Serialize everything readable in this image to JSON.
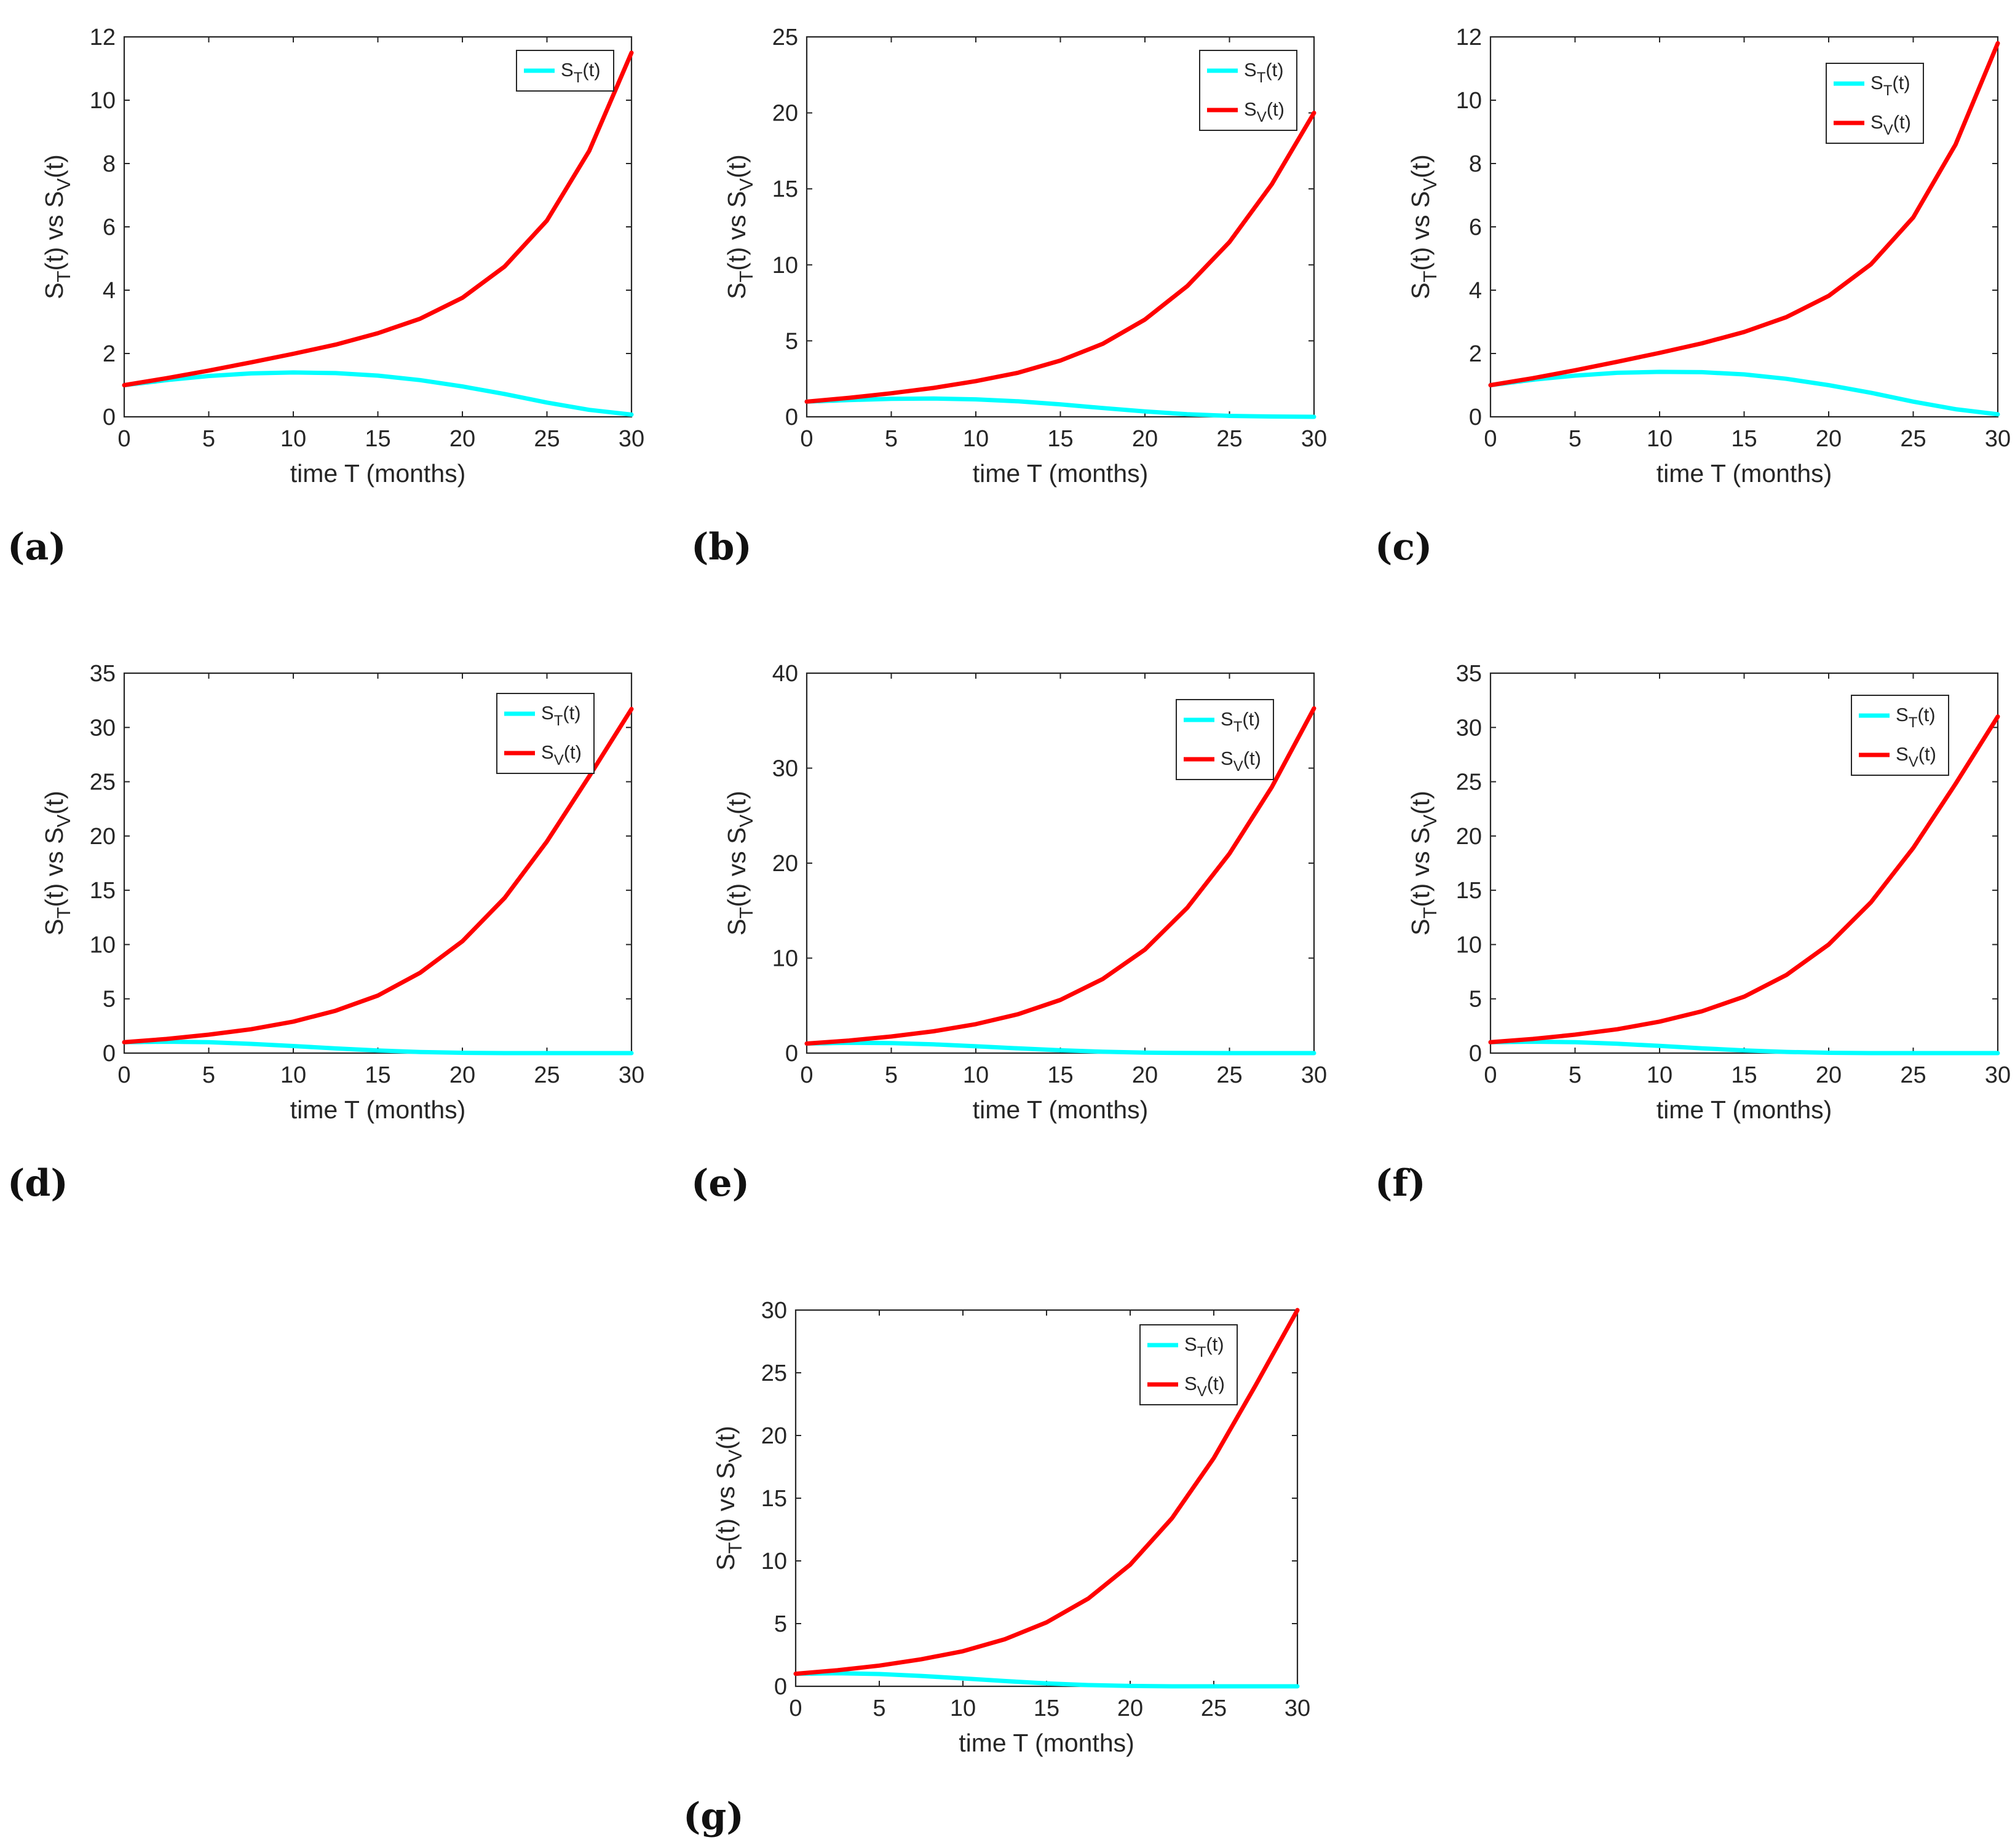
{
  "colors": {
    "st": "#00ffff",
    "sv": "#ff0000",
    "axis": "#262626"
  },
  "chart_data": [
    {
      "panel": "(a)",
      "type": "line",
      "xlabel": "time T (months)",
      "ylabel": {
        "main": "S",
        "sub": "T",
        "mid": "(t) vs S",
        "sub2": "V",
        "end": "(t)"
      },
      "xlim": [
        0,
        30
      ],
      "ylim": [
        0,
        12
      ],
      "xticks": [
        0,
        5,
        10,
        15,
        20,
        25,
        30
      ],
      "yticks": [
        0,
        2,
        4,
        6,
        8,
        10,
        12
      ],
      "legend": {
        "position": "top-right",
        "entries": [
          {
            "main": "S",
            "sub": "T",
            "end": "(t)"
          }
        ]
      },
      "series": [
        {
          "name": "S_T(t)",
          "color": "cyan",
          "x": [
            0,
            2.5,
            5,
            7.5,
            10,
            12.5,
            15,
            17.5,
            20,
            22.5,
            25,
            27.5,
            30
          ],
          "y": [
            1.0,
            1.16,
            1.29,
            1.37,
            1.4,
            1.38,
            1.3,
            1.16,
            0.96,
            0.72,
            0.45,
            0.22,
            0.07
          ]
        },
        {
          "name": "S_V(t)",
          "color": "red",
          "x": [
            0,
            2.5,
            5,
            7.5,
            10,
            12.5,
            15,
            17.5,
            20,
            22.5,
            25,
            27.5,
            30
          ],
          "y": [
            1.0,
            1.22,
            1.46,
            1.72,
            1.99,
            2.28,
            2.64,
            3.1,
            3.76,
            4.75,
            6.2,
            8.4,
            11.5
          ]
        }
      ]
    },
    {
      "panel": "(b)",
      "type": "line",
      "xlabel": "time T (months)",
      "ylabel": {
        "main": "S",
        "sub": "T",
        "mid": "(t) vs S",
        "sub2": "V",
        "end": "(t)"
      },
      "xlim": [
        0,
        30
      ],
      "ylim": [
        0,
        25
      ],
      "xticks": [
        0,
        5,
        10,
        15,
        20,
        25,
        30
      ],
      "yticks": [
        0,
        5,
        10,
        15,
        20,
        25
      ],
      "legend": {
        "position": "top-right",
        "entries": [
          {
            "main": "S",
            "sub": "T",
            "end": "(t)"
          },
          {
            "main": "S",
            "sub": "V",
            "end": "(t)"
          }
        ]
      },
      "series": [
        {
          "name": "S_T(t)",
          "color": "cyan",
          "x": [
            0,
            2.5,
            5,
            7.5,
            10,
            12.5,
            15,
            17.5,
            20,
            22.5,
            25,
            27.5,
            30
          ],
          "y": [
            1.0,
            1.1,
            1.18,
            1.2,
            1.15,
            1.02,
            0.82,
            0.58,
            0.35,
            0.17,
            0.06,
            0.02,
            0.0
          ]
        },
        {
          "name": "S_V(t)",
          "color": "red",
          "x": [
            0,
            2.5,
            5,
            7.5,
            10,
            12.5,
            15,
            17.5,
            20,
            22.5,
            25,
            27.5,
            30
          ],
          "y": [
            1.0,
            1.25,
            1.55,
            1.9,
            2.35,
            2.9,
            3.7,
            4.8,
            6.4,
            8.6,
            11.5,
            15.3,
            20.0
          ]
        }
      ]
    },
    {
      "panel": "(c)",
      "type": "line",
      "xlabel": "time T (months)",
      "ylabel": {
        "main": "S",
        "sub": "T",
        "mid": "(t) vs S",
        "sub2": "V",
        "end": "(t)"
      },
      "xlim": [
        0,
        30
      ],
      "ylim": [
        0,
        12
      ],
      "xticks": [
        0,
        5,
        10,
        15,
        20,
        25,
        30
      ],
      "yticks": [
        0,
        2,
        4,
        6,
        8,
        10,
        12
      ],
      "legend": {
        "position": "top-right",
        "entries": [
          {
            "main": "S",
            "sub": "T",
            "end": "(t)"
          },
          {
            "main": "S",
            "sub": "V",
            "end": "(t)"
          }
        ]
      },
      "series": [
        {
          "name": "S_T(t)",
          "color": "cyan",
          "x": [
            0,
            2.5,
            5,
            7.5,
            10,
            12.5,
            15,
            17.5,
            20,
            22.5,
            25,
            27.5,
            30
          ],
          "y": [
            1.0,
            1.17,
            1.3,
            1.39,
            1.42,
            1.41,
            1.34,
            1.2,
            1.0,
            0.76,
            0.48,
            0.24,
            0.08
          ]
        },
        {
          "name": "S_V(t)",
          "color": "red",
          "x": [
            0,
            2.5,
            5,
            7.5,
            10,
            12.5,
            15,
            17.5,
            20,
            22.5,
            25,
            27.5,
            30
          ],
          "y": [
            1.0,
            1.22,
            1.47,
            1.74,
            2.02,
            2.32,
            2.68,
            3.15,
            3.82,
            4.82,
            6.3,
            8.6,
            11.8
          ]
        }
      ]
    },
    {
      "panel": "(d)",
      "type": "line",
      "xlabel": "time T (months)",
      "ylabel": {
        "main": "S",
        "sub": "T",
        "mid": "(t) vs S",
        "sub2": "V",
        "end": "(t)"
      },
      "xlim": [
        0,
        30
      ],
      "ylim": [
        0,
        35
      ],
      "xticks": [
        0,
        5,
        10,
        15,
        20,
        25,
        30
      ],
      "yticks": [
        0,
        5,
        10,
        15,
        20,
        25,
        30,
        35
      ],
      "legend": {
        "position": "top-right",
        "entries": [
          {
            "main": "S",
            "sub": "T",
            "end": "(t)"
          },
          {
            "main": "S",
            "sub": "V",
            "end": "(t)"
          }
        ]
      },
      "series": [
        {
          "name": "S_T(t)",
          "color": "cyan",
          "x": [
            0,
            2.5,
            5,
            7.5,
            10,
            12.5,
            15,
            17.5,
            20,
            22.5,
            25,
            27.5,
            30
          ],
          "y": [
            1.0,
            1.05,
            1.0,
            0.85,
            0.65,
            0.43,
            0.24,
            0.1,
            0.03,
            0.0,
            0.0,
            0.0,
            0.0
          ]
        },
        {
          "name": "S_V(t)",
          "color": "red",
          "x": [
            0,
            2.5,
            5,
            7.5,
            10,
            12.5,
            15,
            17.5,
            20,
            22.5,
            25,
            27.5,
            30
          ],
          "y": [
            1.0,
            1.3,
            1.7,
            2.2,
            2.9,
            3.9,
            5.3,
            7.4,
            10.3,
            14.3,
            19.5,
            25.5,
            31.7
          ]
        }
      ]
    },
    {
      "panel": "(e)",
      "type": "line",
      "xlabel": "time T (months)",
      "ylabel": {
        "main": "S",
        "sub": "T",
        "mid": "(t) vs S",
        "sub2": "V",
        "end": "(t)"
      },
      "xlim": [
        0,
        30
      ],
      "ylim": [
        0,
        40
      ],
      "xticks": [
        0,
        5,
        10,
        15,
        20,
        25,
        30
      ],
      "yticks": [
        0,
        10,
        20,
        30,
        40
      ],
      "legend": {
        "position": "top-right",
        "entries": [
          {
            "main": "S",
            "sub": "T",
            "end": "(t)"
          },
          {
            "main": "S",
            "sub": "V",
            "end": "(t)"
          }
        ]
      },
      "series": [
        {
          "name": "S_T(t)",
          "color": "cyan",
          "x": [
            0,
            2.5,
            5,
            7.5,
            10,
            12.5,
            15,
            17.5,
            20,
            22.5,
            25,
            27.5,
            30
          ],
          "y": [
            1.0,
            1.08,
            1.05,
            0.92,
            0.72,
            0.5,
            0.3,
            0.14,
            0.05,
            0.01,
            0.0,
            0.0,
            0.0
          ]
        },
        {
          "name": "S_V(t)",
          "color": "red",
          "x": [
            0,
            2.5,
            5,
            7.5,
            10,
            12.5,
            15,
            17.5,
            20,
            22.5,
            25,
            27.5,
            30
          ],
          "y": [
            1.0,
            1.32,
            1.75,
            2.3,
            3.05,
            4.1,
            5.6,
            7.8,
            10.9,
            15.3,
            21.0,
            28.0,
            36.3
          ]
        }
      ]
    },
    {
      "panel": "(f)",
      "type": "line",
      "xlabel": "time T (months)",
      "ylabel": {
        "main": "S",
        "sub": "T",
        "mid": "(t) vs S",
        "sub2": "V",
        "end": "(t)"
      },
      "xlim": [
        0,
        30
      ],
      "ylim": [
        0,
        35
      ],
      "xticks": [
        0,
        5,
        10,
        15,
        20,
        25,
        30
      ],
      "yticks": [
        0,
        5,
        10,
        15,
        20,
        25,
        30,
        35
      ],
      "legend": {
        "position": "top-right",
        "entries": [
          {
            "main": "S",
            "sub": "T",
            "end": "(t)"
          },
          {
            "main": "S",
            "sub": "V",
            "end": "(t)"
          }
        ]
      },
      "series": [
        {
          "name": "S_T(t)",
          "color": "cyan",
          "x": [
            0,
            2.5,
            5,
            7.5,
            10,
            12.5,
            15,
            17.5,
            20,
            22.5,
            25,
            27.5,
            30
          ],
          "y": [
            1.0,
            1.05,
            1.0,
            0.86,
            0.66,
            0.44,
            0.25,
            0.11,
            0.03,
            0.0,
            0.0,
            0.0,
            0.0
          ]
        },
        {
          "name": "S_V(t)",
          "color": "red",
          "x": [
            0,
            2.5,
            5,
            7.5,
            10,
            12.5,
            15,
            17.5,
            20,
            22.5,
            25,
            27.5,
            30
          ],
          "y": [
            1.0,
            1.3,
            1.7,
            2.2,
            2.9,
            3.85,
            5.2,
            7.2,
            10.0,
            13.9,
            18.9,
            24.8,
            31.0
          ]
        }
      ]
    },
    {
      "panel": "(g)",
      "type": "line",
      "xlabel": "time T (months)",
      "ylabel": {
        "main": "S",
        "sub": "T",
        "mid": "(t) vs S",
        "sub2": "V",
        "end": "(t)"
      },
      "xlim": [
        0,
        30
      ],
      "ylim": [
        0,
        30
      ],
      "xticks": [
        0,
        5,
        10,
        15,
        20,
        25,
        30
      ],
      "yticks": [
        0,
        5,
        10,
        15,
        20,
        25,
        30
      ],
      "legend": {
        "position": "top-right",
        "entries": [
          {
            "main": "S",
            "sub": "T",
            "end": "(t)"
          },
          {
            "main": "S",
            "sub": "V",
            "end": "(t)"
          }
        ]
      },
      "series": [
        {
          "name": "S_T(t)",
          "color": "cyan",
          "x": [
            0,
            2.5,
            5,
            7.5,
            10,
            12.5,
            15,
            17.5,
            20,
            22.5,
            25,
            27.5,
            30
          ],
          "y": [
            1.0,
            1.04,
            0.98,
            0.83,
            0.63,
            0.42,
            0.23,
            0.1,
            0.03,
            0.0,
            0.0,
            0.0,
            0.0
          ]
        },
        {
          "name": "S_V(t)",
          "color": "red",
          "x": [
            0,
            2.5,
            5,
            7.5,
            10,
            12.5,
            15,
            17.5,
            20,
            22.5,
            25,
            27.5,
            30
          ],
          "y": [
            1.0,
            1.28,
            1.65,
            2.15,
            2.8,
            3.75,
            5.1,
            7.0,
            9.7,
            13.4,
            18.2,
            24.0,
            30.0
          ]
        }
      ]
    }
  ]
}
